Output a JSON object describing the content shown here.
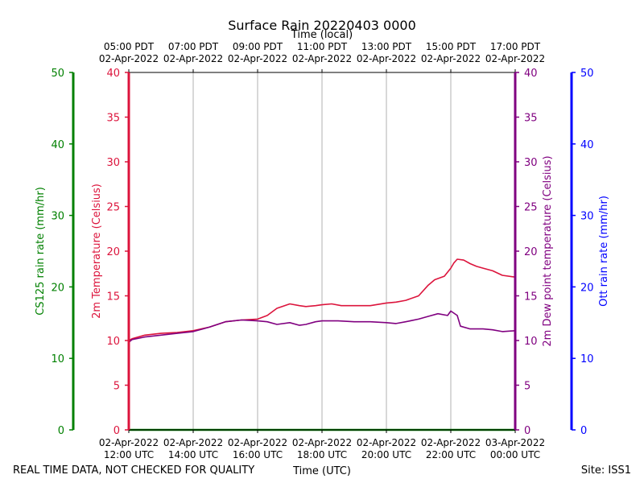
{
  "chart_data": {
    "type": "line",
    "title": "Surface Rain 20220403 0000",
    "top_axis_title": "Time (local)",
    "bottom_axis_title": "Time (UTC)",
    "footer_left": "REAL TIME DATA, NOT CHECKED FOR QUALITY",
    "footer_right": "Site: ISS1",
    "x_range_hours_utc": [
      12,
      24
    ],
    "x_ticks": [
      {
        "hour": 12,
        "utc_date": "02-Apr-2022",
        "utc_time": "12:00 UTC",
        "local_time": "05:00 PDT",
        "local_date": "02-Apr-2022"
      },
      {
        "hour": 14,
        "utc_date": "02-Apr-2022",
        "utc_time": "14:00 UTC",
        "local_time": "07:00 PDT",
        "local_date": "02-Apr-2022"
      },
      {
        "hour": 16,
        "utc_date": "02-Apr-2022",
        "utc_time": "16:00 UTC",
        "local_time": "09:00 PDT",
        "local_date": "02-Apr-2022"
      },
      {
        "hour": 18,
        "utc_date": "02-Apr-2022",
        "utc_time": "18:00 UTC",
        "local_time": "11:00 PDT",
        "local_date": "02-Apr-2022"
      },
      {
        "hour": 20,
        "utc_date": "02-Apr-2022",
        "utc_time": "20:00 UTC",
        "local_time": "13:00 PDT",
        "local_date": "02-Apr-2022"
      },
      {
        "hour": 22,
        "utc_date": "02-Apr-2022",
        "utc_time": "22:00 UTC",
        "local_time": "15:00 PDT",
        "local_date": "02-Apr-2022"
      },
      {
        "hour": 24,
        "utc_date": "03-Apr-2022",
        "utc_time": "00:00 UTC",
        "local_time": "17:00 PDT",
        "local_date": "02-Apr-2022"
      }
    ],
    "axes": {
      "cs125": {
        "label": "CS125 rain rate (mm/hr)",
        "ylim": [
          0,
          50
        ],
        "ticks": [
          0,
          10,
          20,
          30,
          40,
          50
        ],
        "color": "#008000"
      },
      "temperature": {
        "label": "2m Temperature (Celsius)",
        "ylim": [
          0,
          40
        ],
        "ticks": [
          0,
          5,
          10,
          15,
          20,
          25,
          30,
          35,
          40
        ],
        "color": "#dc143c"
      },
      "dewpoint": {
        "label": "2m Dew point temperature (Celsius)",
        "ylim": [
          0,
          40
        ],
        "ticks": [
          0,
          5,
          10,
          15,
          20,
          25,
          30,
          35,
          40
        ],
        "color": "#800080"
      },
      "ott": {
        "label": "Ott rain rate (mm/hr)",
        "ylim": [
          0,
          50
        ],
        "ticks": [
          0,
          10,
          20,
          30,
          40,
          50
        ],
        "color": "#0000ff"
      }
    },
    "series": [
      {
        "name": "2m Temperature",
        "axis": "temperature",
        "color": "#dc143c",
        "x": [
          12.0,
          12.1,
          12.5,
          13.0,
          13.5,
          14.0,
          14.5,
          15.0,
          15.5,
          16.0,
          16.3,
          16.6,
          17.0,
          17.3,
          17.5,
          17.8,
          18.0,
          18.3,
          18.6,
          19.0,
          19.5,
          20.0,
          20.3,
          20.6,
          21.0,
          21.3,
          21.5,
          21.8,
          22.0,
          22.1,
          22.2,
          22.4,
          22.6,
          22.8,
          23.0,
          23.3,
          23.6,
          24.0
        ],
        "values": [
          10.0,
          10.2,
          10.6,
          10.8,
          10.9,
          11.1,
          11.5,
          12.1,
          12.3,
          12.4,
          12.8,
          13.6,
          14.1,
          13.9,
          13.8,
          13.9,
          14.0,
          14.1,
          13.9,
          13.9,
          13.9,
          14.2,
          14.3,
          14.5,
          15.0,
          16.2,
          16.8,
          17.2,
          18.1,
          18.7,
          19.1,
          19.0,
          18.6,
          18.3,
          18.1,
          17.8,
          17.3,
          17.1
        ]
      },
      {
        "name": "2m Dew point temperature",
        "axis": "dewpoint",
        "color": "#800080",
        "x": [
          12.0,
          12.1,
          12.5,
          13.0,
          13.5,
          14.0,
          14.5,
          15.0,
          15.5,
          16.0,
          16.3,
          16.6,
          17.0,
          17.3,
          17.5,
          17.8,
          18.0,
          18.5,
          19.0,
          19.5,
          20.0,
          20.3,
          20.6,
          21.0,
          21.3,
          21.6,
          21.9,
          22.0,
          22.2,
          22.3,
          22.6,
          23.0,
          23.3,
          23.6,
          24.0
        ],
        "values": [
          9.8,
          10.1,
          10.4,
          10.6,
          10.8,
          11.0,
          11.5,
          12.1,
          12.3,
          12.2,
          12.1,
          11.8,
          12.0,
          11.7,
          11.8,
          12.1,
          12.2,
          12.2,
          12.1,
          12.1,
          12.0,
          11.9,
          12.1,
          12.4,
          12.7,
          13.0,
          12.8,
          13.3,
          12.8,
          11.6,
          11.3,
          11.3,
          11.2,
          11.0,
          11.1
        ]
      },
      {
        "name": "CS125 rain rate",
        "axis": "cs125",
        "color": "#008000",
        "x": [
          12.0,
          24.0
        ],
        "values": [
          0,
          0
        ]
      }
    ]
  }
}
